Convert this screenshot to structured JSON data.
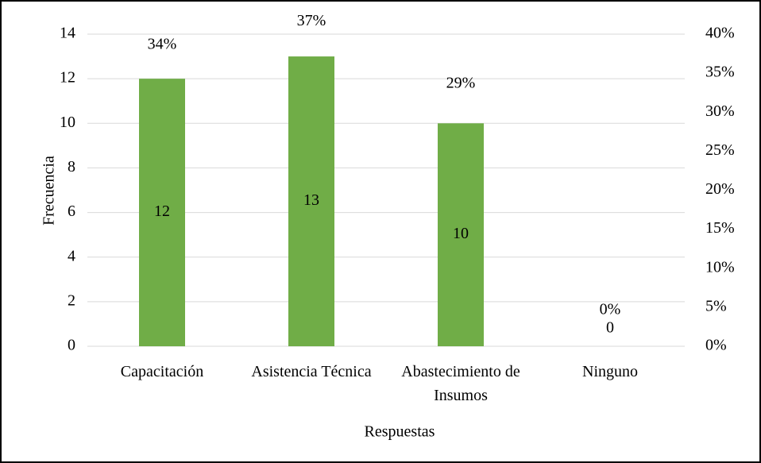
{
  "chart_data": {
    "type": "bar",
    "categories": [
      "Capacitación",
      "Asistencia Técnica",
      "Abastecimiento de Insumos",
      "Ninguno"
    ],
    "series": [
      {
        "color": "#70ad47",
        "values": [
          12,
          13,
          10,
          0
        ]
      },
      {
        "axis": "y2",
        "values": [
          34,
          37,
          29,
          0
        ],
        "value_labels": [
          "34%",
          "37%",
          "29%",
          "0%"
        ]
      }
    ],
    "ylim": [
      0,
      14
    ],
    "yticks": [
      0,
      2,
      4,
      6,
      8,
      10,
      12,
      14
    ],
    "y2lim": [
      0,
      40
    ],
    "y2ticks": [
      {
        "value": 0,
        "label": "0%"
      },
      {
        "value": 5,
        "label": "5%"
      },
      {
        "value": 10,
        "label": "10%"
      },
      {
        "value": 15,
        "label": "15%"
      },
      {
        "value": 20,
        "label": "20%"
      },
      {
        "value": 25,
        "label": "25%"
      },
      {
        "value": 30,
        "label": "30%"
      },
      {
        "value": 35,
        "label": "35%"
      },
      {
        "value": 40,
        "label": "40%"
      }
    ],
    "xlabel": "Respuestas",
    "ylabel": "Frecuencia",
    "grid": true
  }
}
